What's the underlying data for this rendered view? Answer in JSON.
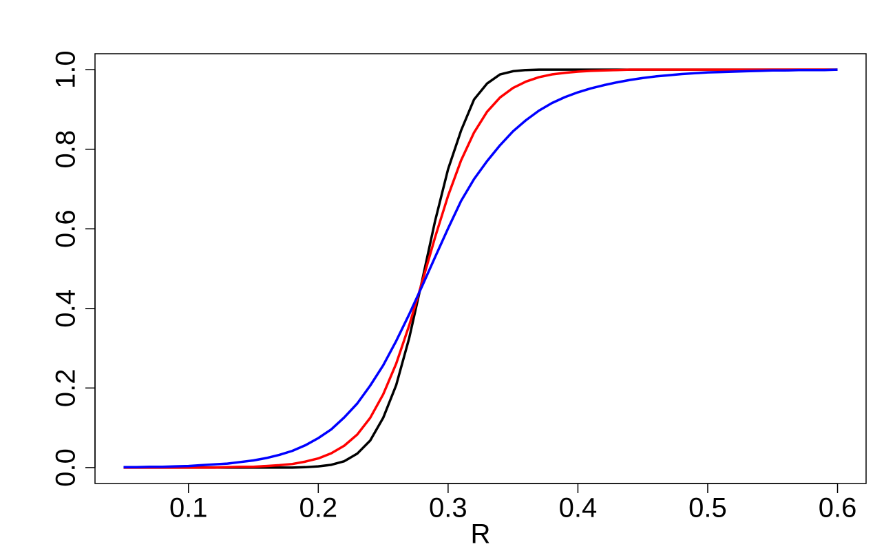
{
  "chart_data": {
    "type": "line",
    "x_label": "R",
    "x": [
      0.05,
      0.06,
      0.07,
      0.08,
      0.09,
      0.1,
      0.11,
      0.12,
      0.13,
      0.14,
      0.15,
      0.16,
      0.17,
      0.18,
      0.19,
      0.2,
      0.21,
      0.22,
      0.23,
      0.24,
      0.25,
      0.26,
      0.27,
      0.28,
      0.29,
      0.3,
      0.31,
      0.32,
      0.33,
      0.34,
      0.35,
      0.36,
      0.37,
      0.38,
      0.39,
      0.4,
      0.41,
      0.42,
      0.43,
      0.44,
      0.45,
      0.46,
      0.47,
      0.48,
      0.49,
      0.5,
      0.51,
      0.52,
      0.53,
      0.54,
      0.55,
      0.56,
      0.57,
      0.58,
      0.59,
      0.6
    ],
    "series": [
      {
        "color": "#000000",
        "values": [
          0,
          0,
          0,
          0,
          0,
          0,
          0,
          0,
          0,
          0,
          0,
          0,
          0,
          0,
          0.001,
          0.003,
          0.007,
          0.016,
          0.035,
          0.068,
          0.125,
          0.207,
          0.325,
          0.47,
          0.62,
          0.75,
          0.847,
          0.925,
          0.965,
          0.988,
          0.996,
          0.999,
          1,
          1,
          1,
          1,
          1,
          1,
          1,
          1,
          1,
          1,
          1,
          1,
          1,
          1,
          1,
          1,
          1,
          1,
          1,
          1,
          1,
          1,
          1,
          1
        ]
      },
      {
        "color": "#ff0000",
        "values": [
          0,
          0,
          0,
          0,
          0,
          0,
          0,
          0,
          0.001,
          0.002,
          0.002,
          0.004,
          0.006,
          0.009,
          0.015,
          0.023,
          0.036,
          0.055,
          0.083,
          0.125,
          0.184,
          0.261,
          0.357,
          0.466,
          0.579,
          0.683,
          0.772,
          0.842,
          0.894,
          0.93,
          0.954,
          0.97,
          0.981,
          0.988,
          0.992,
          0.995,
          0.997,
          0.998,
          0.999,
          1,
          1,
          1,
          1,
          1,
          1,
          1,
          1,
          1,
          1,
          1,
          1,
          1,
          1,
          1,
          1,
          1
        ]
      },
      {
        "color": "#0000ff",
        "values": [
          0.001,
          0.001,
          0.002,
          0.002,
          0.003,
          0.004,
          0.006,
          0.008,
          0.01,
          0.014,
          0.018,
          0.024,
          0.032,
          0.042,
          0.056,
          0.074,
          0.096,
          0.126,
          0.161,
          0.206,
          0.257,
          0.318,
          0.385,
          0.456,
          0.529,
          0.601,
          0.67,
          0.725,
          0.77,
          0.81,
          0.845,
          0.873,
          0.897,
          0.916,
          0.931,
          0.943,
          0.953,
          0.961,
          0.968,
          0.974,
          0.979,
          0.983,
          0.986,
          0.989,
          0.991,
          0.993,
          0.994,
          0.995,
          0.996,
          0.997,
          0.998,
          0.998,
          0.999,
          0.999,
          0.999,
          1
        ]
      }
    ],
    "xlim": [
      0.028,
      0.622
    ],
    "ylim": [
      -0.04,
      1.04
    ],
    "xticks": [
      0.1,
      0.2,
      0.3,
      0.4,
      0.5,
      0.6
    ],
    "yticks": [
      {
        "value": 0,
        "label": "0.0"
      },
      0.2,
      0.4,
      0.6,
      0.8,
      {
        "value": 1,
        "label": "1.0"
      }
    ]
  }
}
